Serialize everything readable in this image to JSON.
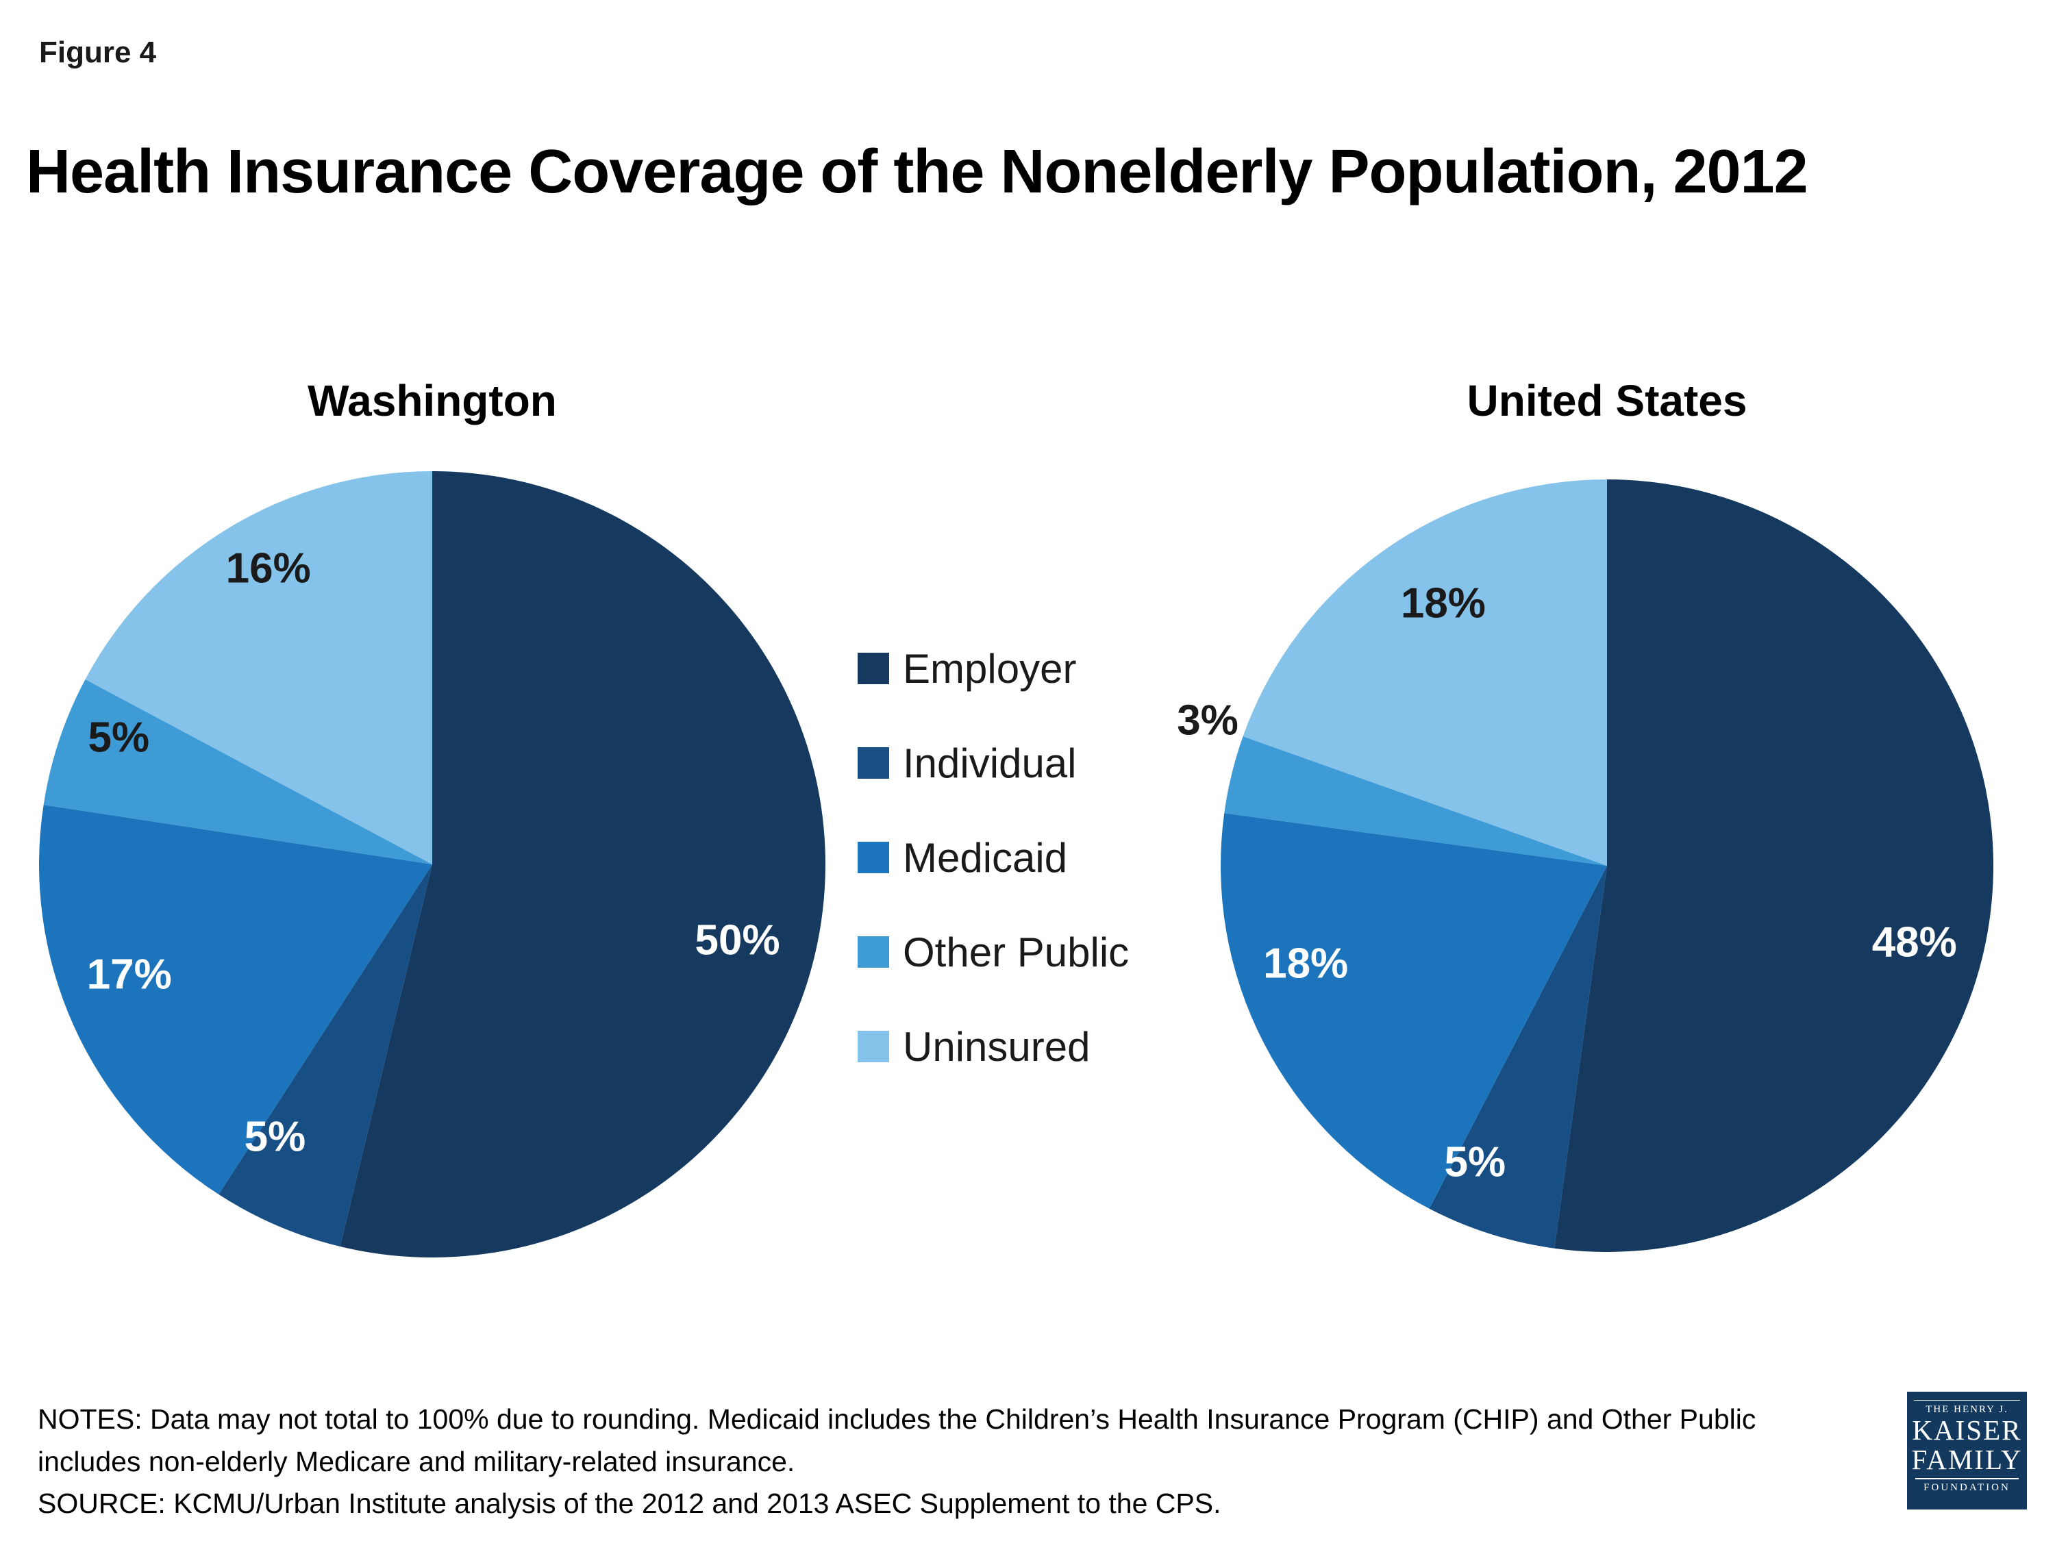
{
  "figure_label": "Figure 4",
  "title": "Health Insurance Coverage of the Nonelderly Population, 2012",
  "legend": {
    "position": "center-between-pies",
    "items": [
      {
        "label": "Employer",
        "color": "#16395F"
      },
      {
        "label": "Individual",
        "color": "#174E84"
      },
      {
        "label": "Medicaid",
        "color": "#1C75BC"
      },
      {
        "label": "Other Public",
        "color": "#3E9BD5"
      },
      {
        "label": "Uninsured",
        "color": "#85C3EA"
      }
    ]
  },
  "chart_data": [
    {
      "type": "pie",
      "title": "Washington",
      "categories": [
        "Employer",
        "Individual",
        "Medicaid",
        "Other Public",
        "Uninsured"
      ],
      "values": [
        50,
        5,
        17,
        5,
        16
      ],
      "unit": "%",
      "labels": [
        "50%",
        "5%",
        "17%",
        "5%",
        "16%"
      ],
      "label_colors": [
        "#FFFFFF",
        "#FFFFFF",
        "#FFFFFF",
        "#1A1A1A",
        "#1A1A1A"
      ],
      "label_angle_deg": [
        104,
        210,
        250,
        292,
        331
      ],
      "label_r": [
        0.8,
        0.8,
        0.82,
        0.86,
        0.86
      ],
      "start_angle_deg": 0,
      "direction": "clockwise"
    },
    {
      "type": "pie",
      "title": "United States",
      "categories": [
        "Employer",
        "Individual",
        "Medicaid",
        "Other Public",
        "Uninsured"
      ],
      "values": [
        48,
        5,
        18,
        3,
        18
      ],
      "unit": "%",
      "labels": [
        "48%",
        "5%",
        "18%",
        "3%",
        "18%"
      ],
      "label_colors": [
        "#FFFFFF",
        "#FFFFFF",
        "#FFFFFF",
        "#1A1A1A",
        "#1A1A1A"
      ],
      "label_angle_deg": [
        104,
        204,
        252,
        290,
        328
      ],
      "label_r": [
        0.82,
        0.84,
        0.82,
        1.1,
        0.8
      ],
      "start_angle_deg": 0,
      "direction": "clockwise"
    }
  ],
  "notes": {
    "notes_text": "NOTES: Data may not total to 100% due to rounding. Medicaid includes the Children’s Health Insurance Program (CHIP) and Other Public includes non-elderly Medicare and military-related insurance.",
    "source_text": "SOURCE: KCMU/Urban Institute analysis of the 2012 and 2013 ASEC Supplement to the CPS."
  },
  "logo": {
    "line1": "THE HENRY J.",
    "line2": "KAISER",
    "line3": "FAMILY",
    "line4": "FOUNDATION"
  }
}
